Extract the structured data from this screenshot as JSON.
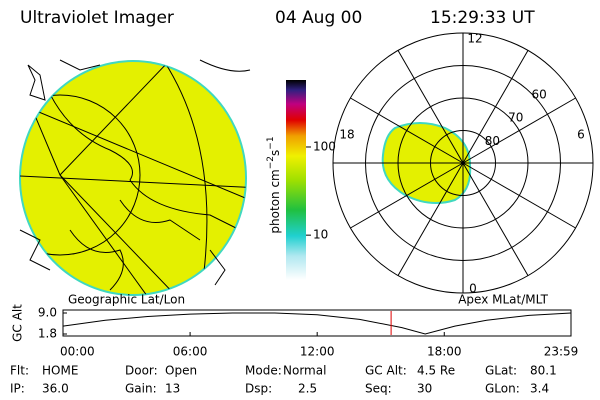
{
  "header": {
    "title": "Ultraviolet Imager",
    "date": "04 Aug 00",
    "time": "15:29:33 UT"
  },
  "left_panel": {
    "caption": "Geographic Lat/Lon"
  },
  "colorbar": {
    "label_parts": [
      "photon cm",
      "−2",
      "s",
      "−1"
    ],
    "lim": [
      3.1,
      575
    ],
    "log": true,
    "ticks": [
      100,
      10
    ]
  },
  "polar_panel": {
    "caption": "Apex MLat/MLT",
    "rlim": [
      90,
      50
    ],
    "rings": [
      80,
      70,
      60
    ],
    "mlt_labels": [
      "12",
      "18",
      "6",
      "0"
    ]
  },
  "chart_data": {
    "type": "line",
    "ylabel": "GC Alt",
    "x": [
      0,
      2,
      4,
      6,
      8,
      10,
      12,
      14,
      16,
      17.1,
      18.5,
      20,
      22,
      23.983
    ],
    "series": [
      {
        "color": "#000000",
        "values": [
          4.5,
          6.5,
          7.8,
          8.6,
          9.0,
          9.0,
          8.4,
          6.8,
          4.0,
          1.8,
          4.5,
          6.5,
          8.2,
          9.0
        ]
      }
    ],
    "marker_x": 15.49,
    "marker_color": "#e00000",
    "xlim": [
      0,
      23.983
    ],
    "xticks": [
      {
        "value": 0,
        "label": "00:00"
      },
      {
        "value": 6,
        "label": "06:00"
      },
      {
        "value": 12,
        "label": "12:00"
      },
      {
        "value": 18,
        "label": "18:00"
      },
      {
        "value": 23.983,
        "label": "23:59"
      }
    ],
    "ylim": [
      1.8,
      9.0
    ],
    "yticks": [
      {
        "value": 9.0,
        "label": "9.0"
      },
      1.8
    ]
  },
  "footer": {
    "rows": [
      [
        [
          "Flt:",
          "HOME"
        ],
        [
          "Door:",
          "Open"
        ],
        [
          "Mode:",
          "Normal"
        ],
        [
          "GC Alt:",
          "4.5 Re"
        ],
        [
          "GLat:",
          "80.1"
        ]
      ],
      [
        [
          "IP:",
          "36.0"
        ],
        [
          "Gain:",
          "13"
        ],
        [
          "Dsp:",
          "2.5"
        ],
        [
          "Seq:",
          "30"
        ],
        [
          "GLon:",
          "3.4"
        ]
      ]
    ]
  }
}
